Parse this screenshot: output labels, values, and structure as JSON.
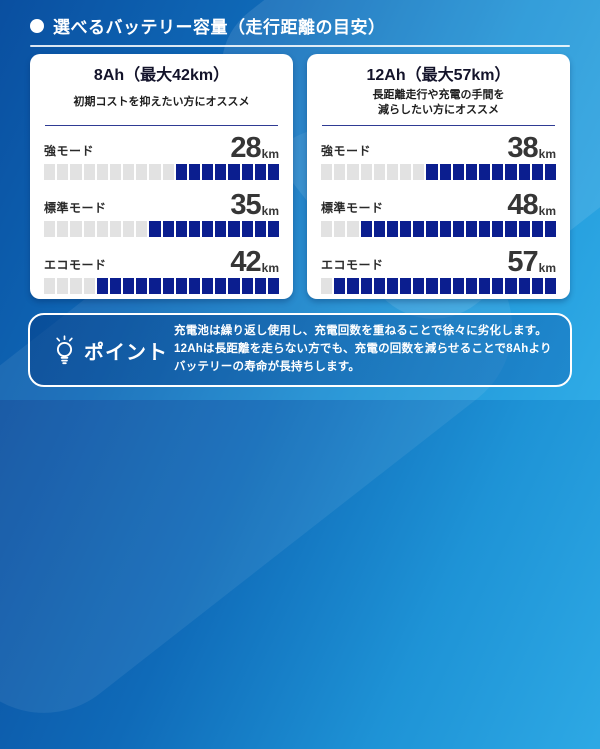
{
  "page": {
    "header_title": "選べるバッテリー容量（走行距離の目安）"
  },
  "colors": {
    "background_top": "#0a4fa0",
    "background_bottom": "#2fabe6",
    "bar_filled": "#0b1e8f",
    "bar_empty": "#e2e2e2",
    "divider": "#2f3b94",
    "card_bg": "#ffffff",
    "text_dark": "#2a2a2a",
    "text_white": "#ffffff"
  },
  "cards": [
    {
      "title": "8Ah（最大42km）",
      "subtitle_lines": [
        "初期コストを抑えたい方にオススメ"
      ],
      "rows": [
        {
          "label": "強モード",
          "value": "28",
          "unit": "km",
          "bar": {
            "gray": 10,
            "navy": 8
          }
        },
        {
          "label": "標準モード",
          "value": "35",
          "unit": "km",
          "bar": {
            "gray": 8,
            "navy": 10
          }
        },
        {
          "label": "エコモード",
          "value": "42",
          "unit": "km",
          "bar": {
            "gray": 4,
            "navy": 14
          }
        }
      ]
    },
    {
      "title": "12Ah（最大57km）",
      "subtitle_lines": [
        "長距離走行や充電の手間を",
        "減らしたい方にオススメ"
      ],
      "rows": [
        {
          "label": "強モード",
          "value": "38",
          "unit": "km",
          "bar": {
            "gray": 8,
            "navy": 10
          }
        },
        {
          "label": "標準モード",
          "value": "48",
          "unit": "km",
          "bar": {
            "gray": 3,
            "navy": 15
          }
        },
        {
          "label": "エコモード",
          "value": "57",
          "unit": "km",
          "bar": {
            "gray": 1,
            "navy": 17
          }
        }
      ]
    }
  ],
  "point": {
    "label": "ポイント",
    "lines": [
      "充電池は繰り返し使用し、充電回数を重ねることで徐々に劣化します。",
      "12Ahは長距離を走らない方でも、充電の回数を減らせることで8Ahより",
      "バッテリーの寿命が長持ちします。"
    ]
  },
  "chart_data": [
    {
      "type": "bar",
      "title": "8Ah（最大42km）",
      "subtitle": "初期コストを抑えたい方にオススメ",
      "categories": [
        "強モード",
        "標準モード",
        "エコモード"
      ],
      "values": [
        28,
        35,
        42
      ],
      "unit": "km",
      "total_segments": 18,
      "filled_segments": [
        8,
        10,
        14
      ],
      "xlabel": "",
      "ylabel": ""
    },
    {
      "type": "bar",
      "title": "12Ah（最大57km）",
      "subtitle": "長距離走行や充電の手間を減らしたい方にオススメ",
      "categories": [
        "強モード",
        "標準モード",
        "エコモード"
      ],
      "values": [
        38,
        48,
        57
      ],
      "unit": "km",
      "total_segments": 18,
      "filled_segments": [
        10,
        15,
        17
      ],
      "xlabel": "",
      "ylabel": ""
    }
  ]
}
